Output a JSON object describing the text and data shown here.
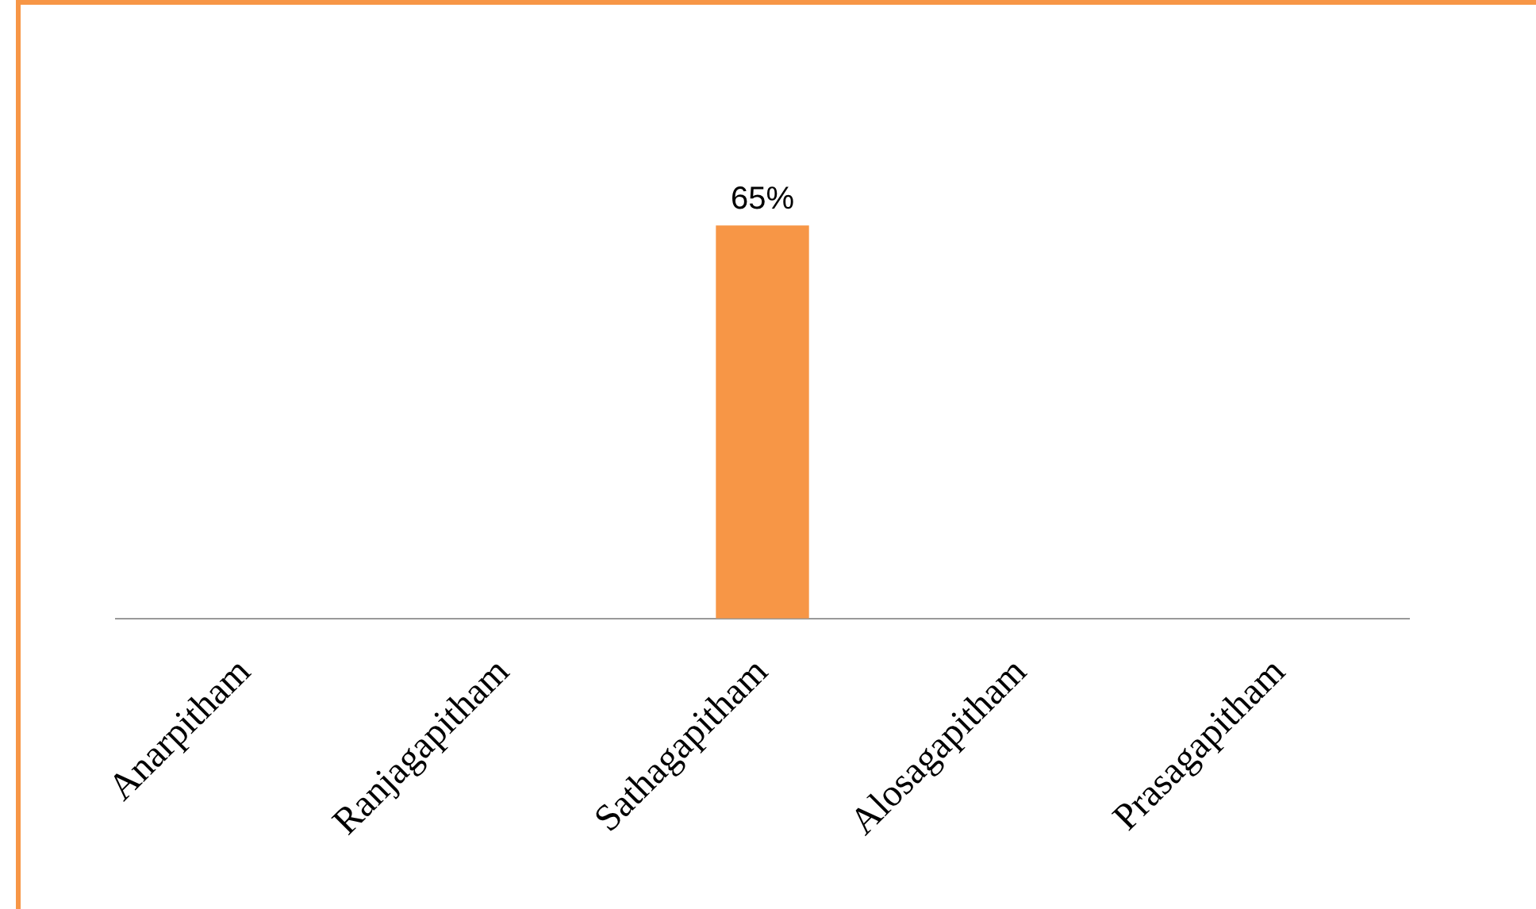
{
  "chart_data": {
    "type": "bar",
    "categories": [
      "Anarpitham",
      "Ranjagapitham",
      "Sathagapitham",
      "Alosagapitham",
      "Prasagapitham"
    ],
    "values": [
      0,
      0,
      65,
      0,
      0
    ],
    "value_labels": [
      null,
      null,
      "65%",
      null,
      null
    ],
    "color": "#f79646",
    "tick_labels": "x"
  }
}
